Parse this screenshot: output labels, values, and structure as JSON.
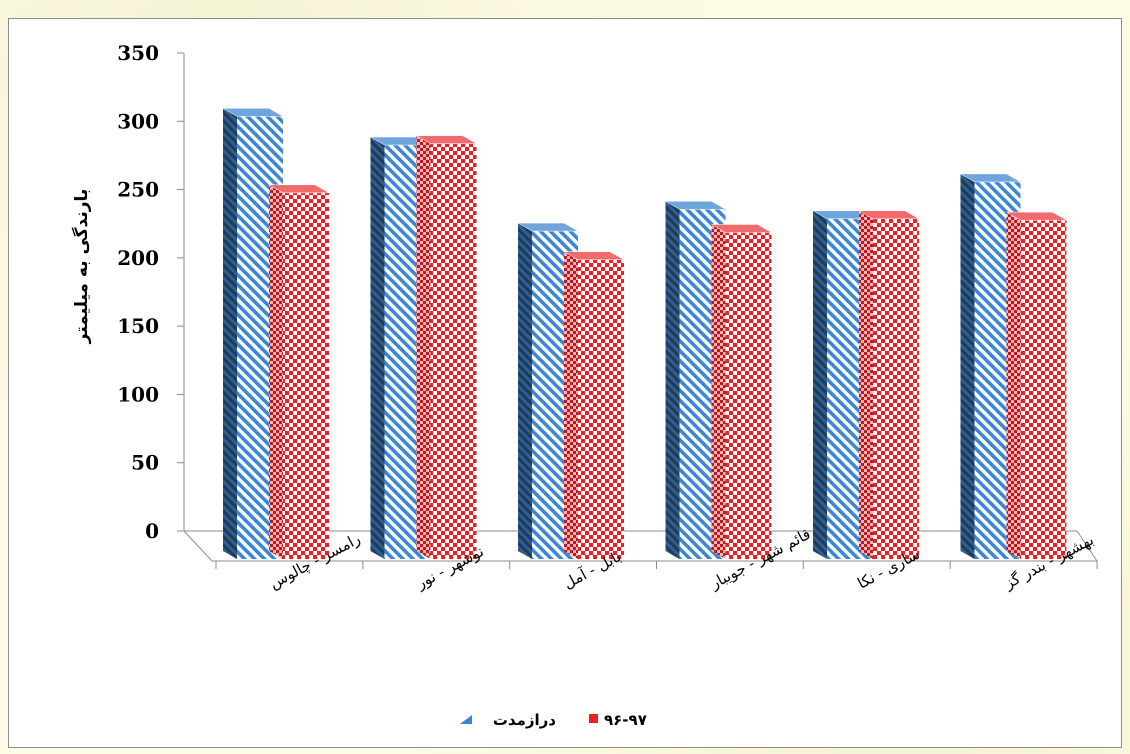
{
  "chart_data": {
    "type": "bar",
    "three_d": true,
    "categories": [
      "رامسر - چالوس",
      "نوشهر - نور",
      "بابل - آمل",
      "قائم شهر - جویبار",
      "ساری - نکا",
      "بهشهر - بندر گز"
    ],
    "series": [
      {
        "name": "درازمدت",
        "values": [
          308,
          287,
          224,
          240,
          233,
          260
        ],
        "color": "#3b86d6",
        "pattern": "diagonal-stripes"
      },
      {
        "name": "۹۶-۹۷",
        "values": [
          252,
          288,
          203,
          223,
          233,
          232
        ],
        "color": "#ef1e24",
        "pattern": "checkerboard"
      }
    ],
    "ylabel": "بارندگی به میلیمتر",
    "ylim": [
      0,
      350
    ],
    "yticks": [
      0,
      50,
      100,
      150,
      200,
      250,
      300,
      350
    ],
    "grid": false,
    "legend_position": "bottom"
  }
}
